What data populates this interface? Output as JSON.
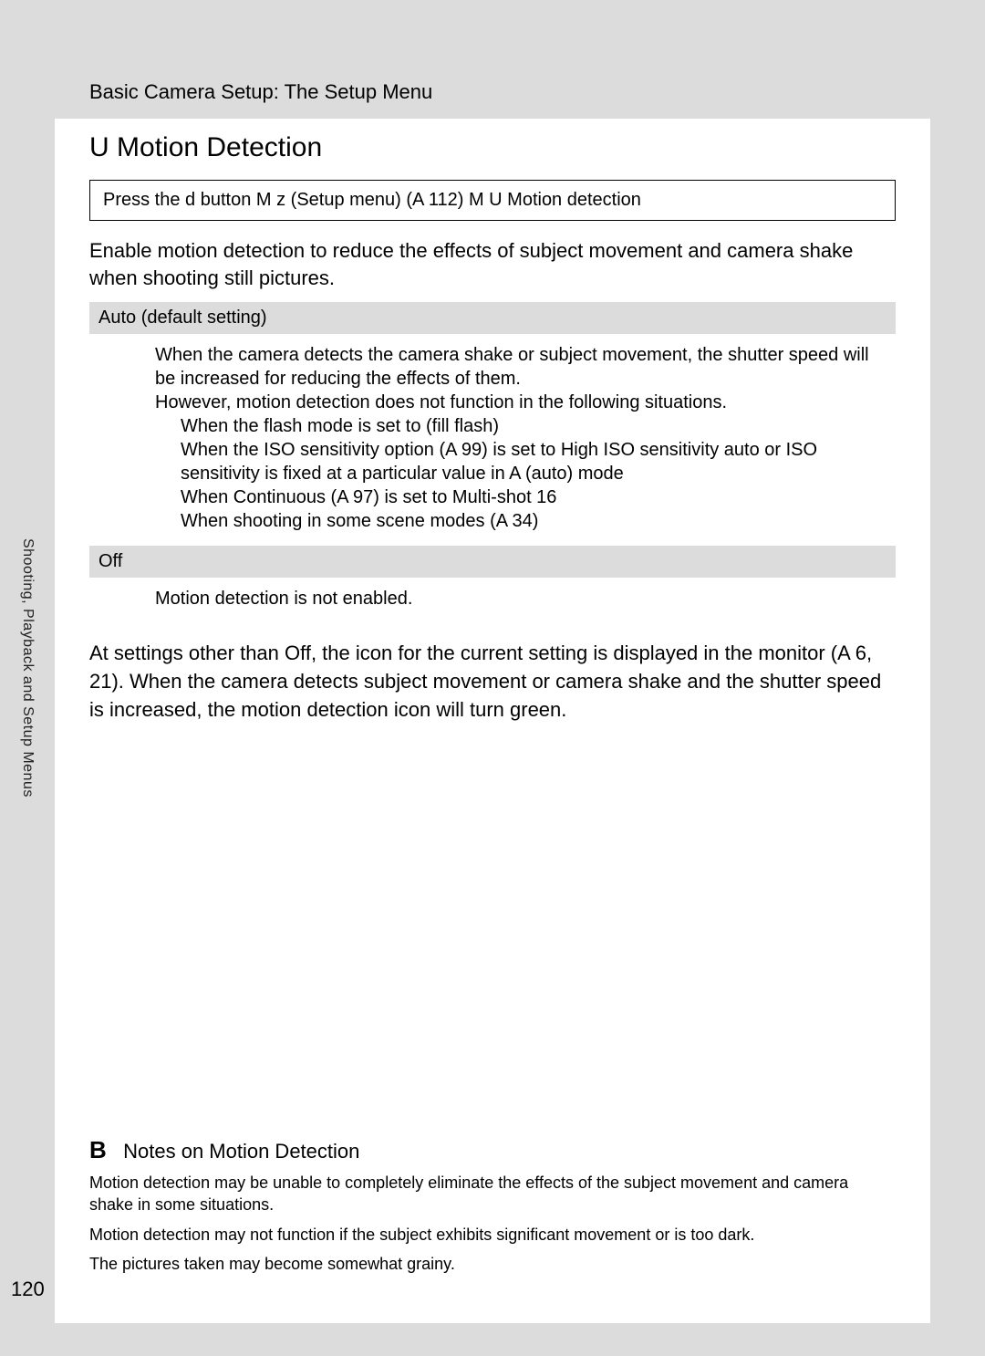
{
  "header": {
    "breadcrumb": "Basic Camera Setup: The Setup Menu"
  },
  "sideTab": {
    "label": "Shooting, Playback and Setup Menus"
  },
  "pageNumber": "120",
  "section": {
    "icon": "U",
    "title": "Motion Detection",
    "navPath": "Press the d button M z (Setup menu) (A 112) M U Motion detection",
    "intro": "Enable motion detection to reduce the effects of subject movement and camera shake when shooting still pictures."
  },
  "options": {
    "auto": {
      "header": "Auto (default setting)",
      "line1": "When the camera detects the camera shake or subject movement, the shutter speed will be increased for reducing the effects of them.",
      "line2": "However, motion detection does not function in the following situations.",
      "bullets": {
        "b1": "When the flash mode is set to (fill flash)",
        "b2": "When the ISO sensitivity option (A 99) is set to High ISO sensitivity auto or ISO sensitivity is fixed at a particular value in A (auto) mode",
        "b3": "When Continuous (A 97) is set to Multi-shot 16",
        "b4": "When shooting in some scene modes (A 34)"
      }
    },
    "off": {
      "header": "Off",
      "line1": "Motion detection is not enabled."
    }
  },
  "followText": "At settings other than Off, the icon for the current setting is displayed in the monitor (A 6, 21). When the camera detects subject movement or camera shake and the shutter speed is increased, the motion detection icon will turn green.",
  "notes": {
    "icon": "B",
    "title": "Notes on Motion Detection",
    "n1": "Motion detection may be unable to completely eliminate the effects of the subject movement and camera shake in some situations.",
    "n2": "Motion detection may not function if the subject exhibits significant movement or is too dark.",
    "n3": "The pictures taken may become somewhat grainy."
  }
}
